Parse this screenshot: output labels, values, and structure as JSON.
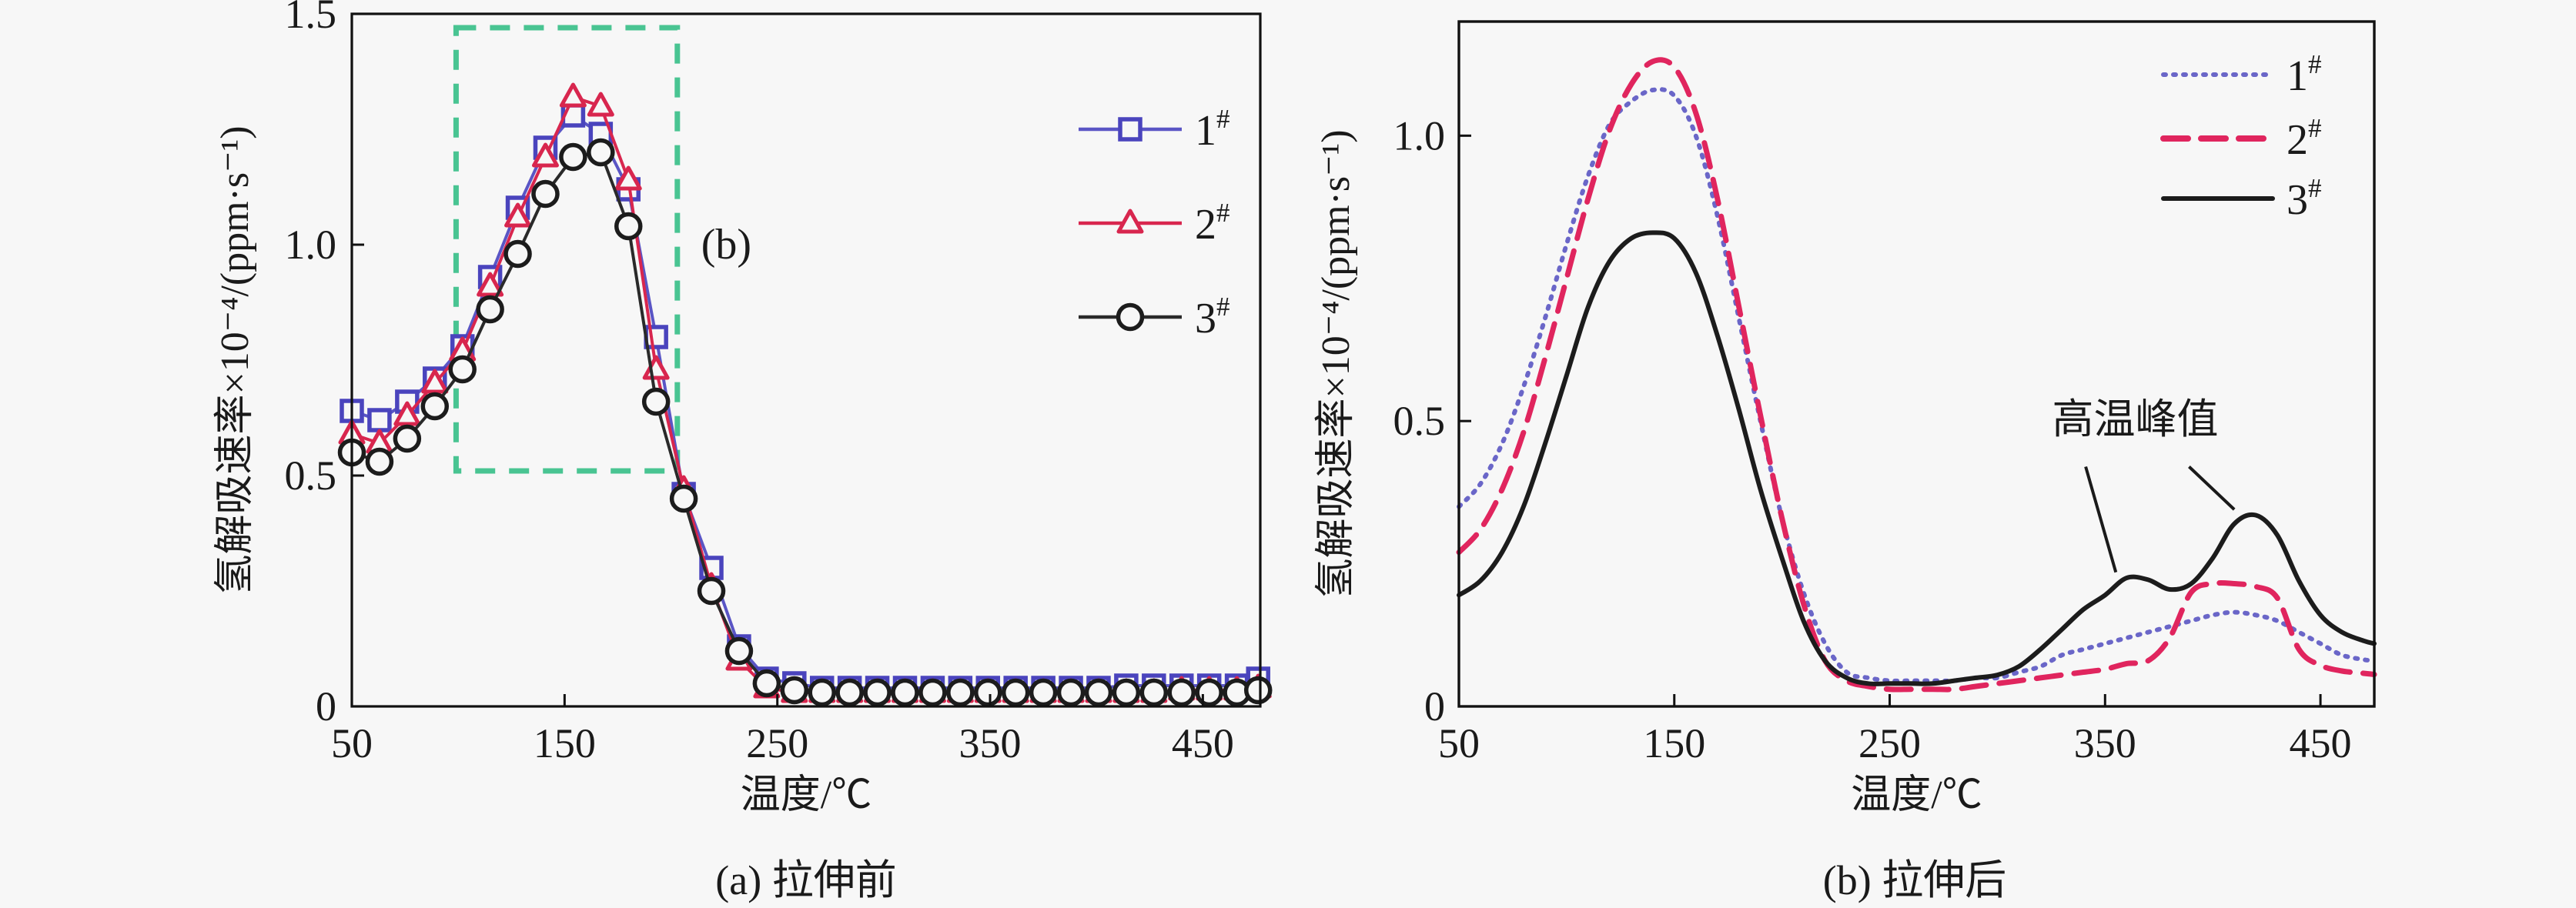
{
  "figure": {
    "background": "#f7f7f7",
    "text_color": "#1a1a1a"
  },
  "chart_data": [
    {
      "id": "a",
      "type": "line",
      "caption": "(a) 拉伸前",
      "xlabel": "温度/℃",
      "ylabel": "氢解吸速率×10⁻⁴/(ppm·s⁻¹)",
      "xlim": [
        50,
        477
      ],
      "ylim": [
        0,
        1.5
      ],
      "xticks": [
        50,
        150,
        250,
        350,
        450
      ],
      "yticks": [
        0,
        0.5,
        1.0,
        1.5
      ],
      "ytick_labels": [
        "0",
        "0.5",
        "1.0",
        "1.5"
      ],
      "grid": false,
      "legend_position": "top-right-inside",
      "x": [
        50,
        63,
        76,
        89,
        102,
        115,
        128,
        141,
        154,
        167,
        180,
        193,
        206,
        219,
        232,
        245,
        258,
        271,
        284,
        297,
        310,
        323,
        336,
        349,
        362,
        375,
        388,
        401,
        414,
        427,
        440,
        453,
        466,
        476
      ],
      "series": [
        {
          "name": "1#",
          "marker": "square",
          "marker_color": "#4a44bd",
          "line_color": "#5a55c5",
          "line": "solid",
          "y": [
            0.64,
            0.62,
            0.66,
            0.71,
            0.78,
            0.93,
            1.08,
            1.21,
            1.28,
            1.24,
            1.12,
            0.8,
            0.46,
            0.3,
            0.13,
            0.06,
            0.05,
            0.04,
            0.04,
            0.04,
            0.04,
            0.04,
            0.04,
            0.04,
            0.04,
            0.04,
            0.04,
            0.04,
            0.045,
            0.045,
            0.045,
            0.045,
            0.045,
            0.06
          ]
        },
        {
          "name": "2#",
          "marker": "triangle",
          "marker_color": "#d8264e",
          "line_color": "#e8658500",
          "line": "solid",
          "y": [
            0.59,
            0.57,
            0.63,
            0.7,
            0.77,
            0.91,
            1.06,
            1.19,
            1.32,
            1.3,
            1.14,
            0.73,
            0.47,
            0.26,
            0.1,
            0.04,
            0.03,
            0.03,
            0.03,
            0.03,
            0.03,
            0.03,
            0.03,
            0.03,
            0.03,
            0.03,
            0.03,
            0.03,
            0.03,
            0.03,
            0.035,
            0.035,
            0.035,
            0.04
          ]
        },
        {
          "name": "3#",
          "marker": "circle",
          "marker_color": "#1c1c1c",
          "line_color": "#2a2a2a",
          "line": "solid",
          "y": [
            0.55,
            0.53,
            0.58,
            0.65,
            0.73,
            0.86,
            0.98,
            1.11,
            1.19,
            1.2,
            1.04,
            0.66,
            0.45,
            0.25,
            0.12,
            0.05,
            0.035,
            0.03,
            0.03,
            0.03,
            0.03,
            0.03,
            0.03,
            0.03,
            0.03,
            0.03,
            0.03,
            0.03,
            0.03,
            0.03,
            0.03,
            0.03,
            0.03,
            0.035
          ]
        }
      ],
      "highlight_box": {
        "x1": 99,
        "x2": 203,
        "y1": 0.51,
        "y2": 1.47,
        "color": "#49c492",
        "label": "(b)",
        "label_color": "#3cb893",
        "label_x": 226,
        "label_y": 0.97
      }
    },
    {
      "id": "b",
      "type": "line",
      "caption": "(b) 拉伸后",
      "xlabel": "温度/℃",
      "ylabel": "氢解吸速率×10⁻⁴/(ppm·s⁻¹)",
      "xlim": [
        50,
        475
      ],
      "ylim": [
        0,
        1.2
      ],
      "xticks": [
        50,
        150,
        250,
        350,
        450
      ],
      "yticks": [
        0,
        0.5,
        1.0
      ],
      "ytick_labels": [
        "0",
        "0.5",
        "1.0"
      ],
      "grid": false,
      "legend_position": "top-right-inside",
      "x": [
        50,
        60,
        70,
        80,
        90,
        100,
        110,
        120,
        130,
        140,
        150,
        160,
        170,
        180,
        190,
        200,
        210,
        220,
        230,
        240,
        250,
        260,
        270,
        280,
        290,
        300,
        310,
        320,
        330,
        340,
        350,
        360,
        370,
        380,
        390,
        400,
        410,
        420,
        430,
        440,
        450,
        460,
        470,
        475
      ],
      "series": [
        {
          "name": "1#",
          "marker": "none",
          "marker_color": "#6a66c8",
          "line_color": "#6a66c8",
          "line": "dotted",
          "y": [
            0.35,
            0.39,
            0.46,
            0.56,
            0.68,
            0.81,
            0.93,
            1.02,
            1.06,
            1.08,
            1.07,
            1.0,
            0.86,
            0.68,
            0.5,
            0.33,
            0.2,
            0.11,
            0.06,
            0.05,
            0.045,
            0.045,
            0.045,
            0.045,
            0.05,
            0.05,
            0.06,
            0.07,
            0.09,
            0.1,
            0.11,
            0.12,
            0.13,
            0.14,
            0.15,
            0.16,
            0.165,
            0.16,
            0.15,
            0.13,
            0.11,
            0.09,
            0.082,
            0.08
          ]
        },
        {
          "name": "2#",
          "marker": "none",
          "marker_color": "#e0255e",
          "line_color": "#e0255e",
          "line": "dashed",
          "y": [
            0.27,
            0.31,
            0.38,
            0.48,
            0.61,
            0.75,
            0.89,
            1.01,
            1.09,
            1.13,
            1.12,
            1.04,
            0.89,
            0.7,
            0.51,
            0.33,
            0.18,
            0.08,
            0.045,
            0.035,
            0.03,
            0.03,
            0.03,
            0.03,
            0.035,
            0.04,
            0.045,
            0.05,
            0.055,
            0.06,
            0.065,
            0.075,
            0.08,
            0.12,
            0.2,
            0.215,
            0.215,
            0.21,
            0.19,
            0.1,
            0.072,
            0.062,
            0.058,
            0.056
          ]
        },
        {
          "name": "3#",
          "marker": "none",
          "marker_color": "#1c1c1c",
          "line_color": "#1c1c1c",
          "line": "solid",
          "y": [
            0.195,
            0.22,
            0.27,
            0.35,
            0.46,
            0.58,
            0.7,
            0.78,
            0.82,
            0.83,
            0.82,
            0.76,
            0.65,
            0.52,
            0.38,
            0.26,
            0.15,
            0.08,
            0.05,
            0.04,
            0.04,
            0.04,
            0.04,
            0.045,
            0.05,
            0.055,
            0.07,
            0.1,
            0.135,
            0.17,
            0.195,
            0.225,
            0.222,
            0.205,
            0.215,
            0.26,
            0.32,
            0.335,
            0.3,
            0.22,
            0.16,
            0.13,
            0.115,
            0.11
          ]
        }
      ],
      "annotation": {
        "text": "高温峰值",
        "x": 364,
        "y": 0.5,
        "leaders": [
          {
            "x1": 341,
            "y1": 0.42,
            "x2": 355,
            "y2": 0.235
          },
          {
            "x1": 389,
            "y1": 0.42,
            "x2": 410,
            "y2": 0.345
          }
        ]
      }
    }
  ],
  "legend_suffix": "#"
}
